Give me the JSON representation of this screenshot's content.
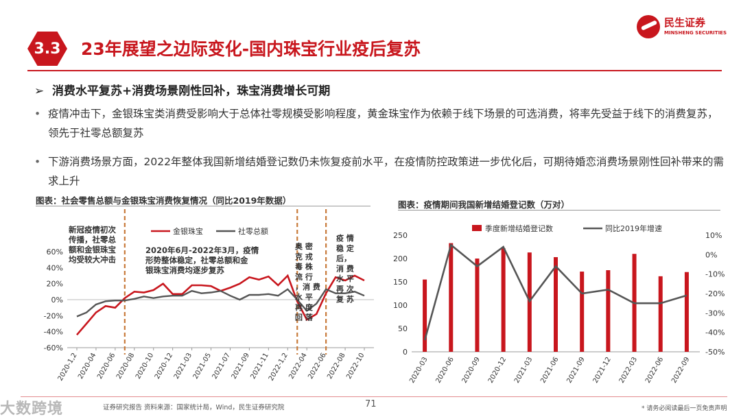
{
  "brand": {
    "name_cn": "民生证券",
    "name_en": "MINSHENG SECURITIES"
  },
  "section": {
    "number": "3.3",
    "title": "23年展望之边际变化-国内珠宝行业疫后复苏"
  },
  "subheading": "消费水平复苏+消费场景刚性回补，珠宝消费增长可期",
  "bullets": [
    "疫情冲击下，金银珠宝类消费受影响大于总体社零规模受影响程度，黄金珠宝作为依赖于线下场景的可选消费，将率先受益于线下的消费复苏，领先于社零总额复苏",
    "下游消费场景方面，2022年整体我国新增结婚登记数仍未恢复疫前水平，在疫情防控政策进一步优化后，可期待婚恋消费场景刚性回补带来的需求上升"
  ],
  "chart_data": [
    {
      "type": "line",
      "title": "图表：社会零售总额与金银珠宝消费恢复情况（同比2019年数据）",
      "x_ticks": [
        "2020-1,2",
        "2020-04",
        "2020-06",
        "2020-08",
        "2020-10",
        "2020-12",
        "2021-03",
        "2021-05",
        "2021-07",
        "2021-09",
        "2021-11",
        "2022-1,2",
        "2022-04",
        "2022-06",
        "2022-08",
        "2022-10"
      ],
      "x": [
        "2020-1,2",
        "2020-03",
        "2020-04",
        "2020-05",
        "2020-06",
        "2020-07",
        "2020-08",
        "2020-09",
        "2020-10",
        "2020-11",
        "2020-12",
        "2021-1,2",
        "2021-03",
        "2021-04",
        "2021-05",
        "2021-06",
        "2021-07",
        "2021-08",
        "2021-09",
        "2021-10",
        "2021-11",
        "2021-12",
        "2022-1,2",
        "2022-03",
        "2022-04",
        "2022-05",
        "2022-06",
        "2022-07",
        "2022-08",
        "2022-09",
        "2022-10"
      ],
      "series": [
        {
          "name": "金银珠宝",
          "color": "#c8161d",
          "values": [
            -44,
            -30,
            -16,
            -8,
            -10,
            2,
            10,
            9,
            12,
            20,
            7,
            7,
            18,
            18,
            17,
            11,
            15,
            20,
            28,
            25,
            29,
            18,
            30,
            -2,
            -25,
            -18,
            8,
            28,
            24,
            30,
            24
          ]
        },
        {
          "name": "社零总额",
          "color": "#555555",
          "values": [
            -21,
            -16,
            -6,
            -2,
            -1,
            -1,
            1,
            4,
            2,
            4,
            5,
            5,
            11,
            8,
            9,
            11,
            5,
            0,
            6,
            6,
            7,
            5,
            13,
            0,
            -14,
            -5,
            13,
            8,
            8,
            10,
            5
          ]
        }
      ],
      "ylim": [
        -60,
        60
      ],
      "y_ticks": [
        "-60%",
        "-40%",
        "-20%",
        "0%",
        "20%",
        "40%",
        "60%"
      ],
      "legend_position": "top",
      "annotations": [
        "新冠疫情初次传播，社零总额和金银珠宝均受较大冲击",
        "2020年6月-2022年3月，疫情形势整体稳定，社零总额和金银珠宝消费均逐步复苏",
        "奥密克戎毒株流行，消费水平再度回落",
        "疫情稳定后，消费水平再次复苏"
      ],
      "ann_wrap": [
        [
          "新冠疫情初次",
          "传播，社零总",
          "额和金银珠宝",
          "均受较大冲击"
        ],
        [
          "2020年6月-2022年3月，疫情",
          "形势整体稳定，社零总额和金",
          "银珠宝消费均逐步复苏"
        ],
        [
          "奥 密",
          "克 戎",
          "毒 株",
          "流 行",
          "，消 费",
          "水 平",
          "再 度",
          "回 落"
        ],
        [
          "疫 情",
          "稳 定",
          "后，",
          "消 费",
          "水 平",
          "再 次",
          "复 苏"
        ]
      ]
    },
    {
      "type": "bar+line",
      "title": "图表：疫情期间我国新增结婚登记数（万对）",
      "categories": [
        "2020-03",
        "2020-06",
        "2020-09",
        "2020-12",
        "2021-03",
        "2021-06",
        "2021-09",
        "2021-12",
        "2022-03",
        "2022-06",
        "2022-09"
      ],
      "bar_series": {
        "name": "季度新增结婚登记数",
        "color": "#c8161d",
        "values": [
          155,
          233,
          200,
          222,
          213,
          203,
          172,
          175,
          210,
          162,
          171
        ]
      },
      "line_series": {
        "name": "同比2019年增速",
        "color": "#555555",
        "values": [
          -44,
          5,
          -6,
          4,
          -24,
          -6,
          -20,
          -18,
          -25,
          -25,
          -21
        ]
      },
      "ylim_left": [
        0,
        250
      ],
      "y_ticks_left": [
        "0",
        "50",
        "100",
        "150",
        "200",
        "250"
      ],
      "ylim_right": [
        -50,
        10
      ],
      "y_ticks_right": [
        "-50%",
        "-40%",
        "-30%",
        "-20%",
        "-10%",
        "0%",
        "10%"
      ],
      "legend_position": "top"
    }
  ],
  "footer": {
    "watermark": "大数跨境",
    "source": "证券研究报告 资料来源：国家统计局，Wind，民生证券研究院",
    "page_number": "71",
    "disclaimer": "* 请务必阅读最后一页免责声明"
  }
}
